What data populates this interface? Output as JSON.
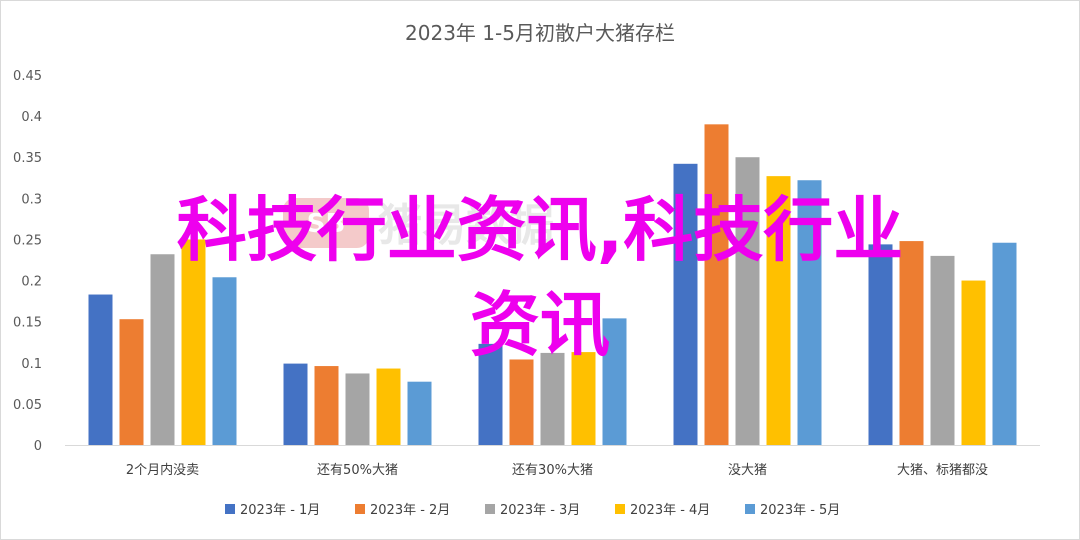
{
  "chart_data": {
    "type": "bar",
    "title": "2023年 1-5月初散户大猪存栏",
    "categories": [
      "2个月内没卖",
      "还有50%大猪",
      "还有30%大猪",
      "没大猪",
      "大猪、标猪都没"
    ],
    "series": [
      {
        "name": "2023年 - 1月",
        "color": "#4472c4",
        "values": [
          0.183,
          0.099,
          0.123,
          0.342,
          0.244
        ]
      },
      {
        "name": "2023年 - 2月",
        "color": "#ed7d31",
        "values": [
          0.153,
          0.096,
          0.104,
          0.39,
          0.248
        ]
      },
      {
        "name": "2023年 - 3月",
        "color": "#a5a5a5",
        "values": [
          0.232,
          0.087,
          0.112,
          0.35,
          0.23
        ]
      },
      {
        "name": "2023年 - 4月",
        "color": "#ffc000",
        "values": [
          0.25,
          0.093,
          0.113,
          0.327,
          0.2
        ]
      },
      {
        "name": "2023年 - 5月",
        "color": "#5b9bd5",
        "values": [
          0.204,
          0.077,
          0.154,
          0.322,
          0.246
        ]
      }
    ],
    "yticks": [
      "0",
      "0.05",
      "0.1",
      "0.15",
      "0.2",
      "0.25",
      "0.3",
      "0.35",
      "0.4",
      "0.45"
    ],
    "ylim": [
      0,
      0.45
    ],
    "grid": false,
    "legend": "bottom"
  },
  "watermark": {
    "text": "猪易数据",
    "logo_text": "SB",
    "color": "#e06666"
  },
  "overlay": {
    "line1": "科技行业资讯,科技行业",
    "line2": "资讯",
    "color": "#ee00ee"
  }
}
